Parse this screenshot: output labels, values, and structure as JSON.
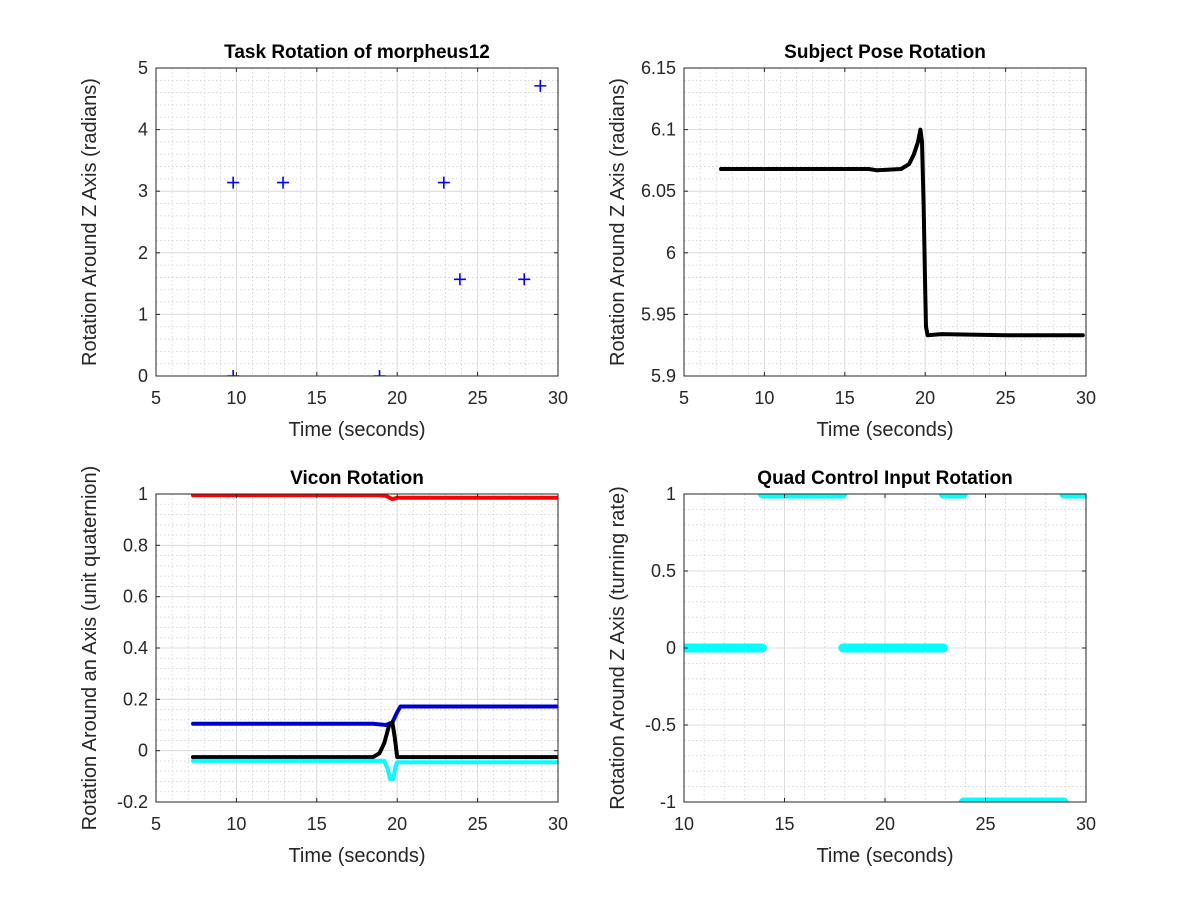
{
  "chart_data": [
    {
      "id": "task",
      "type": "scatter",
      "title": "Task Rotation of morpheus12",
      "xlabel": "Time (seconds)",
      "ylabel": "Rotation Around Z Axis (radians)",
      "xlim": [
        5,
        30
      ],
      "ylim": [
        0,
        5
      ],
      "xticks": [
        5,
        10,
        15,
        20,
        25,
        30
      ],
      "yticks": [
        0,
        1,
        2,
        3,
        4,
        5
      ],
      "xminor": 1,
      "yminor": 0.2,
      "grid": true,
      "series": [
        {
          "marker": "plus",
          "color": "#0000ff",
          "points": [
            [
              9.8,
              3.14
            ],
            [
              9.8,
              0.0
            ],
            [
              12.9,
              3.14
            ],
            [
              18.9,
              0.0
            ],
            [
              22.9,
              3.14
            ],
            [
              23.9,
              1.57
            ],
            [
              27.9,
              1.57
            ],
            [
              28.9,
              4.71
            ]
          ]
        }
      ]
    },
    {
      "id": "pose",
      "type": "line",
      "title": "Subject Pose Rotation",
      "xlabel": "Time (seconds)",
      "ylabel": "Rotation Around Z Axis (radians)",
      "xlim": [
        5,
        30
      ],
      "ylim": [
        5.9,
        6.15
      ],
      "xticks": [
        5,
        10,
        15,
        20,
        25,
        30
      ],
      "yticks": [
        5.9,
        5.95,
        6,
        6.05,
        6.1,
        6.15
      ],
      "ytick_labels": [
        "5.9",
        "5.95",
        "6",
        "6.05",
        "6.1",
        "6.15"
      ],
      "xminor": 1,
      "yminor": 0.01,
      "grid": true,
      "series": [
        {
          "color": "#000000",
          "width": 4,
          "points": [
            [
              7.3,
              6.068
            ],
            [
              16.5,
              6.068
            ],
            [
              17.0,
              6.067
            ],
            [
              18.5,
              6.068
            ],
            [
              19.0,
              6.072
            ],
            [
              19.3,
              6.08
            ],
            [
              19.55,
              6.09
            ],
            [
              19.7,
              6.1
            ],
            [
              19.8,
              6.09
            ],
            [
              19.9,
              6.04
            ],
            [
              20.0,
              5.97
            ],
            [
              20.05,
              5.94
            ],
            [
              20.15,
              5.933
            ],
            [
              21.0,
              5.934
            ],
            [
              25.0,
              5.933
            ],
            [
              29.8,
              5.933
            ]
          ]
        }
      ]
    },
    {
      "id": "vicon",
      "type": "line",
      "title": "Vicon Rotation",
      "xlabel": "Time (seconds)",
      "ylabel": "Rotation Around an Axis (unit quaternion)",
      "xlim": [
        5,
        30
      ],
      "ylim": [
        -0.2,
        1
      ],
      "xticks": [
        5,
        10,
        15,
        20,
        25,
        30
      ],
      "yticks": [
        -0.2,
        0,
        0.2,
        0.4,
        0.6,
        0.8,
        1
      ],
      "ytick_labels": [
        "-0.2",
        "0",
        "0.2",
        "0.4",
        "0.6",
        "0.8",
        "1"
      ],
      "xminor": 1,
      "yminor": 0.04,
      "grid": true,
      "series": [
        {
          "color": "#ff0000",
          "width": 4,
          "points": [
            [
              7.3,
              0.995
            ],
            [
              18.8,
              0.995
            ],
            [
              19.3,
              0.993
            ],
            [
              19.7,
              0.98
            ],
            [
              20.0,
              0.985
            ],
            [
              21.0,
              0.985
            ],
            [
              29.9,
              0.985
            ]
          ]
        },
        {
          "color": "#0000cc",
          "width": 4,
          "points": [
            [
              7.3,
              0.105
            ],
            [
              18.5,
              0.105
            ],
            [
              19.3,
              0.1
            ],
            [
              19.7,
              0.11
            ],
            [
              20.0,
              0.15
            ],
            [
              20.2,
              0.172
            ],
            [
              29.9,
              0.172
            ]
          ]
        },
        {
          "color": "#000000",
          "width": 4,
          "points": [
            [
              7.3,
              -0.025
            ],
            [
              18.5,
              -0.025
            ],
            [
              18.9,
              -0.01
            ],
            [
              19.2,
              0.03
            ],
            [
              19.5,
              0.1
            ],
            [
              19.7,
              0.11
            ],
            [
              19.85,
              0.05
            ],
            [
              20.0,
              -0.025
            ],
            [
              29.9,
              -0.025
            ]
          ]
        },
        {
          "color": "#00ffff",
          "width": 4,
          "points": [
            [
              7.3,
              -0.04
            ],
            [
              19.2,
              -0.04
            ],
            [
              19.4,
              -0.07
            ],
            [
              19.55,
              -0.11
            ],
            [
              19.75,
              -0.11
            ],
            [
              19.9,
              -0.06
            ],
            [
              20.0,
              -0.045
            ],
            [
              29.9,
              -0.045
            ]
          ]
        }
      ]
    },
    {
      "id": "quad",
      "type": "scatter",
      "title": "Quad Control Input Rotation",
      "xlabel": "Time (seconds)",
      "ylabel": "Rotation Around Z Axis (turning rate)",
      "xlim": [
        10,
        30
      ],
      "ylim": [
        -1,
        1
      ],
      "xticks": [
        10,
        15,
        20,
        25,
        30
      ],
      "yticks": [
        -1,
        -0.5,
        0,
        0.5,
        1
      ],
      "ytick_labels": [
        "-1",
        "-0.5",
        "0",
        "0.5",
        "1"
      ],
      "xminor": 1,
      "yminor": 0.1,
      "grid": true,
      "series": [
        {
          "color": "#00ffff",
          "width": 9,
          "segments": [
            [
              10.0,
              13.9,
              0
            ],
            [
              13.9,
              17.9,
              1
            ],
            [
              17.9,
              22.9,
              0
            ],
            [
              22.9,
              23.9,
              1
            ],
            [
              23.9,
              28.9,
              -1
            ],
            [
              28.9,
              30.0,
              1
            ]
          ]
        }
      ]
    }
  ]
}
